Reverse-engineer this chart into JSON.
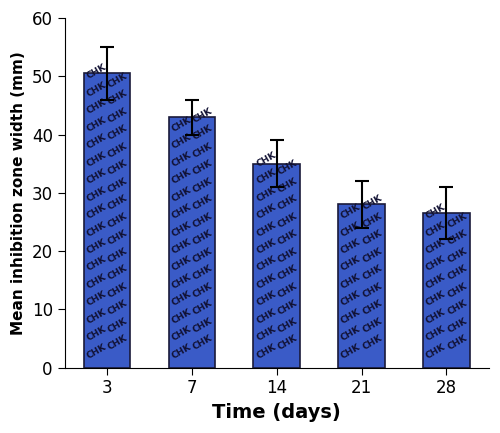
{
  "categories": [
    "3",
    "7",
    "14",
    "21",
    "28"
  ],
  "values": [
    50.5,
    43.0,
    35.0,
    28.0,
    26.5
  ],
  "errors": [
    4.5,
    3.0,
    4.0,
    4.0,
    4.5
  ],
  "bar_color": "#3a5bc7",
  "bar_edgecolor": "#1a1a3a",
  "xlabel": "Time (days)",
  "ylabel": "Mean inhibition zone width (mm)",
  "ylim": [
    0,
    60
  ],
  "yticks": [
    0,
    10,
    20,
    30,
    40,
    50,
    60
  ],
  "xlabel_fontsize": 14,
  "ylabel_fontsize": 11,
  "tick_fontsize": 12,
  "chk_text": "CHK",
  "chk_fontsize": 6.5,
  "chk_color": "#111133",
  "chk_rotation": 30,
  "bar_width": 0.55
}
